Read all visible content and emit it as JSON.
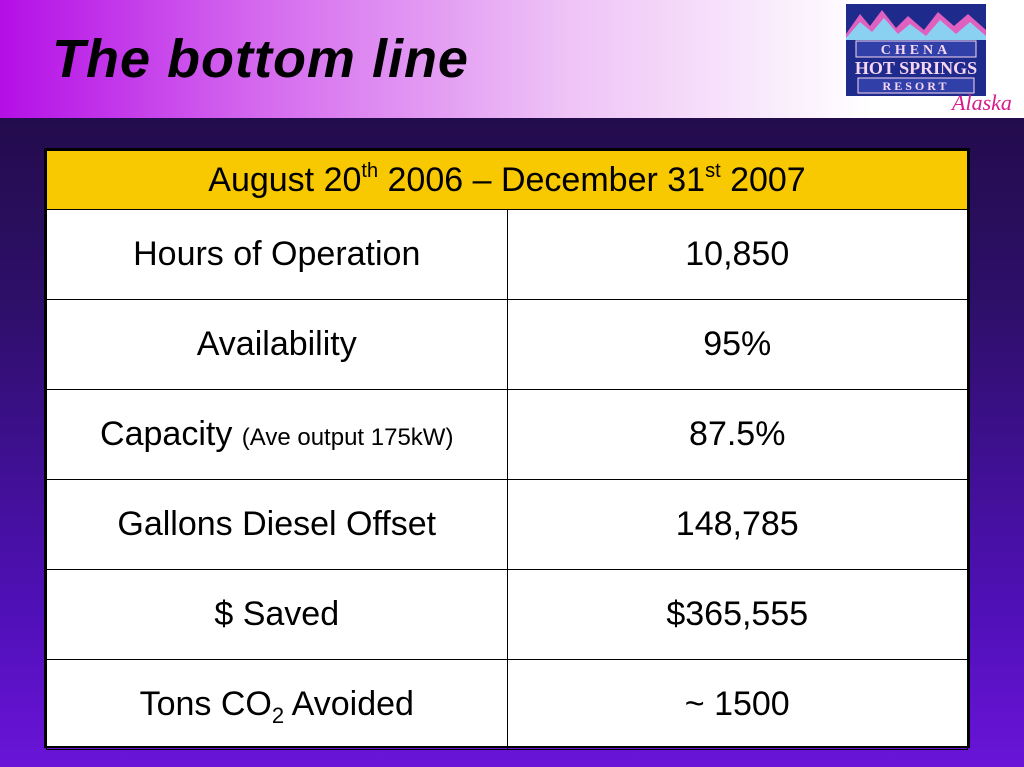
{
  "slide": {
    "title": "The bottom line",
    "logo": {
      "line1": "CHENA",
      "line2": "HOT SPRINGS",
      "line3": "RESORT",
      "script": "Alaska",
      "colors": {
        "primary": "#1e2a8c",
        "accent": "#d81a8a"
      }
    },
    "table": {
      "header": {
        "start_text": "August 20",
        "start_sup": "th",
        "start_year": " 2006 – December 31",
        "end_sup": "st",
        "end_year": " 2007"
      },
      "rows": [
        {
          "label": "Hours of Operation",
          "value": "10,850"
        },
        {
          "label": "Availability",
          "value": "95%"
        },
        {
          "label": "Capacity ",
          "note": "(Ave output 175kW)",
          "value": "87.5%"
        },
        {
          "label": "Gallons Diesel Offset",
          "value": "148,785"
        },
        {
          "label": "$ Saved",
          "value": "$365,555"
        },
        {
          "label_pre": "Tons CO",
          "label_sub": "2",
          "label_post": " Avoided",
          "value": "~ 1500"
        }
      ]
    },
    "colors": {
      "header_fill": "#f8c800",
      "accent": "#b40fe6"
    }
  }
}
